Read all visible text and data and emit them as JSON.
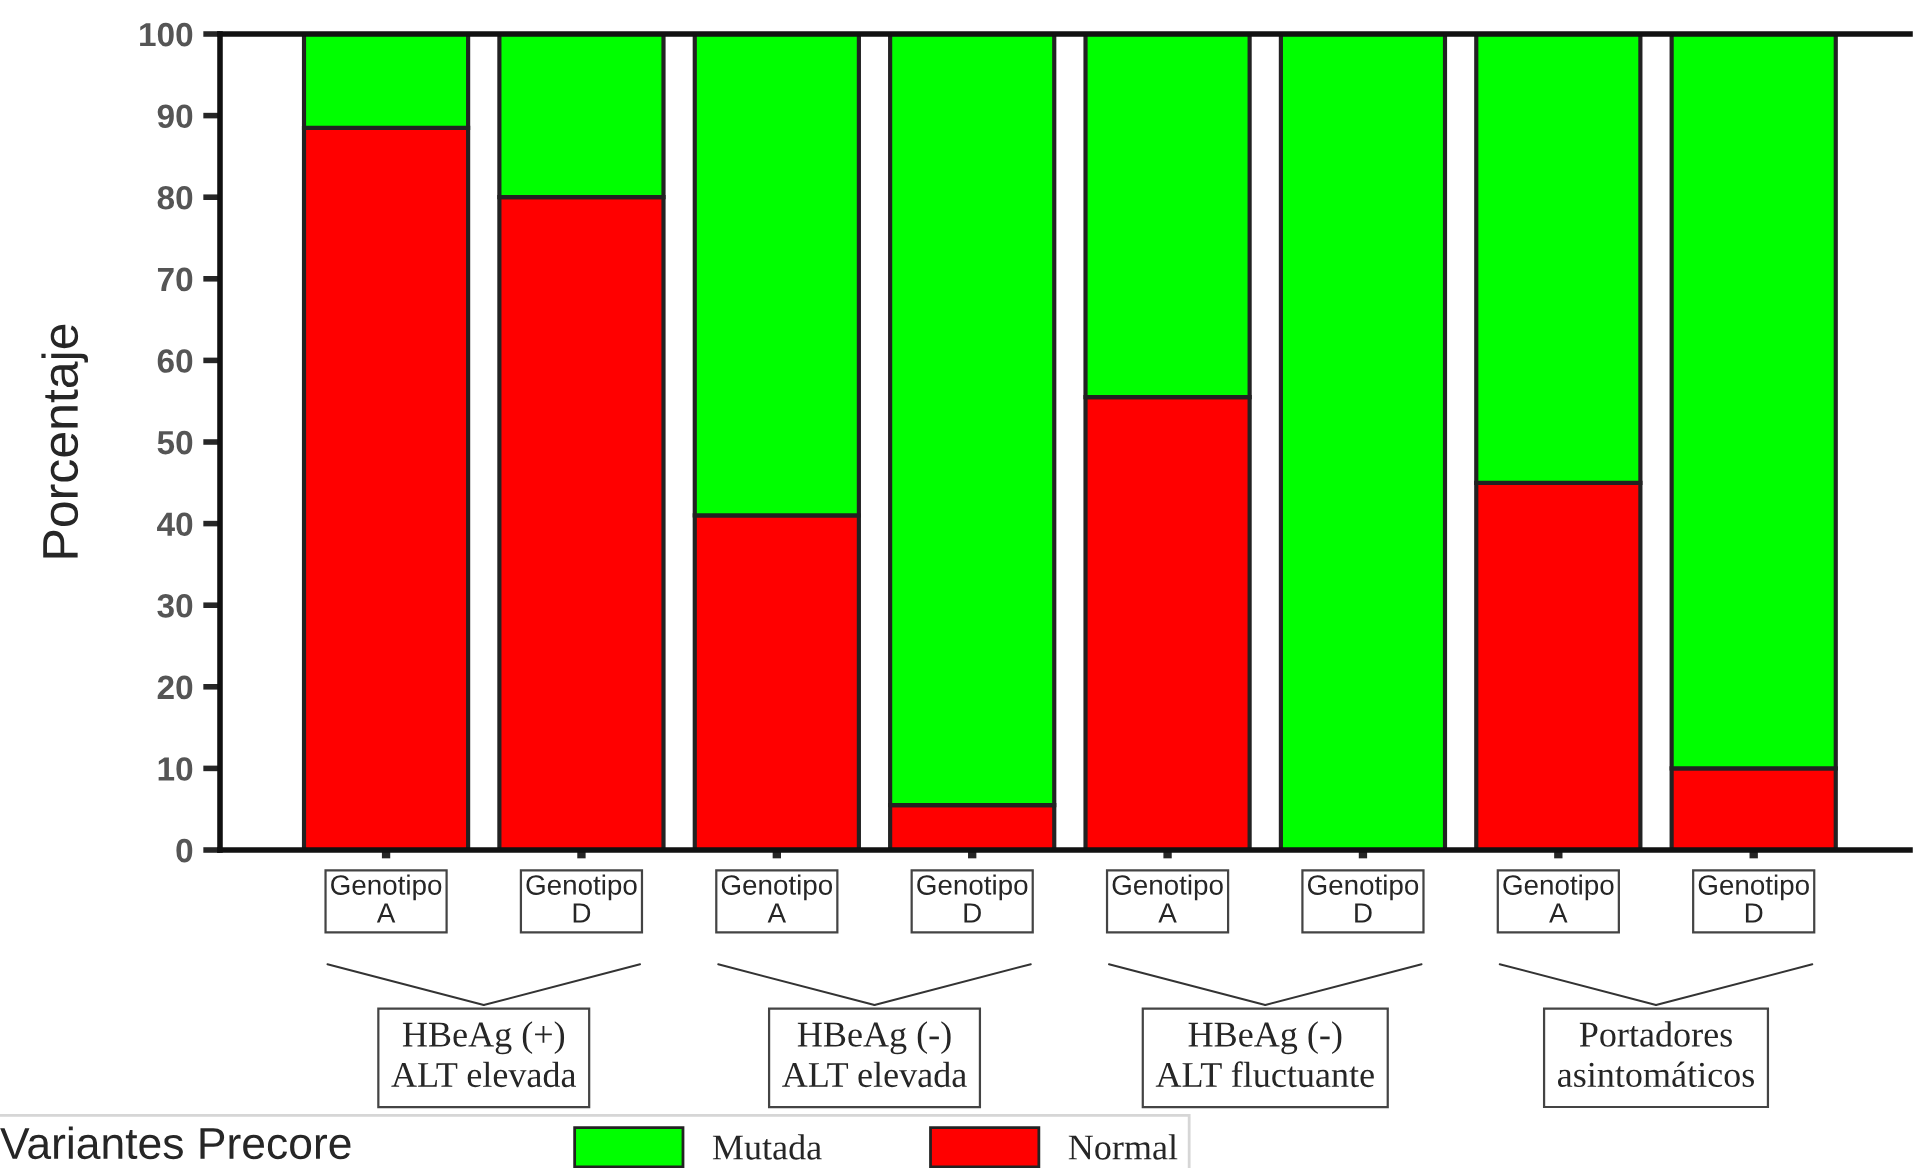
{
  "chart_data": {
    "type": "bar",
    "stacked": true,
    "ylabel": "Porcentaje",
    "legend_title": "Variantes Precore",
    "categories": [
      "Genotipo\nA",
      "Genotipo\nD",
      "Genotipo\nA",
      "Genotipo\nD",
      "Genotipo\nA",
      "Genotipo\nD",
      "Genotipo\nA",
      "Genotipo\nD"
    ],
    "series": [
      {
        "name": "Normal",
        "color": "#ff0000",
        "values": [
          88.5,
          80,
          41,
          5.5,
          55.5,
          0,
          45,
          10
        ]
      },
      {
        "name": "Mutada",
        "color": "#00ff00",
        "values": [
          11.5,
          20,
          59,
          94.5,
          44.5,
          100,
          55,
          90
        ]
      }
    ],
    "annotations": [
      "HBeAg (+)\nALT elevada",
      "HBeAg (-)\nALT elevada",
      "HBeAg (-)\nALT fluctuante",
      "Portadores\nasintomáticos"
    ],
    "ylim": [
      0,
      100
    ],
    "yticks": [
      0,
      10,
      20,
      30,
      40,
      50,
      60,
      70,
      80,
      90,
      100
    ],
    "grid": false,
    "legend": "bottom"
  }
}
